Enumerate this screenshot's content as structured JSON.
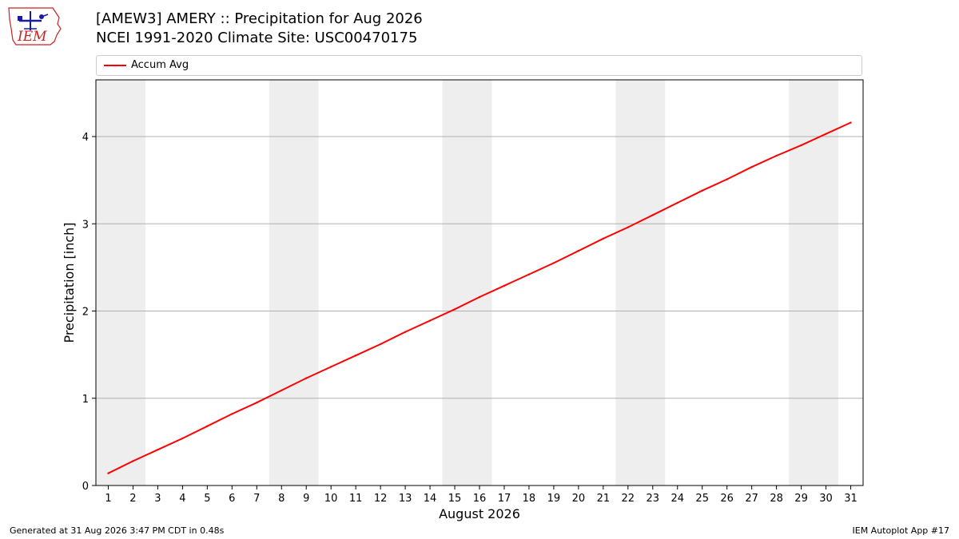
{
  "logo": {
    "text": "IEM",
    "icon": "iowa-outline-weather-station-icon",
    "color": "#cc2222"
  },
  "header": {
    "title_line1": "[AMEW3] AMERY :: Precipitation for Aug 2026",
    "title_line2": "NCEI 1991-2020 Climate Site: USC00470175"
  },
  "footer": {
    "generated": "Generated at 31 Aug 2026 3:47 PM CDT in 0.48s",
    "app": "IEM Autoplot App #17"
  },
  "chart_data": {
    "type": "line",
    "xlabel": "August 2026",
    "ylabel": "Precipitation [inch]",
    "xlim": [
      0.5,
      31.5
    ],
    "ylim": [
      0,
      4.65
    ],
    "yticks": [
      0,
      1,
      2,
      3,
      4
    ],
    "grid": "horizontal",
    "weekend_shading": [
      [
        0.5,
        2.5
      ],
      [
        7.5,
        9.5
      ],
      [
        14.5,
        16.5
      ],
      [
        21.5,
        23.5
      ],
      [
        28.5,
        30.5
      ]
    ],
    "shading_color": "#eeeeee",
    "legend_position": "top",
    "x": [
      1,
      2,
      3,
      4,
      5,
      6,
      7,
      8,
      9,
      10,
      11,
      12,
      13,
      14,
      15,
      16,
      17,
      18,
      19,
      20,
      21,
      22,
      23,
      24,
      25,
      26,
      27,
      28,
      29,
      30,
      31
    ],
    "series": [
      {
        "name": "Accum Avg",
        "color": "#ff0000",
        "values": [
          0.14,
          0.28,
          0.41,
          0.54,
          0.68,
          0.82,
          0.95,
          1.09,
          1.23,
          1.36,
          1.49,
          1.62,
          1.76,
          1.89,
          2.02,
          2.16,
          2.29,
          2.42,
          2.55,
          2.69,
          2.83,
          2.96,
          3.1,
          3.24,
          3.38,
          3.51,
          3.65,
          3.78,
          3.9,
          4.03,
          4.16
        ]
      }
    ]
  }
}
